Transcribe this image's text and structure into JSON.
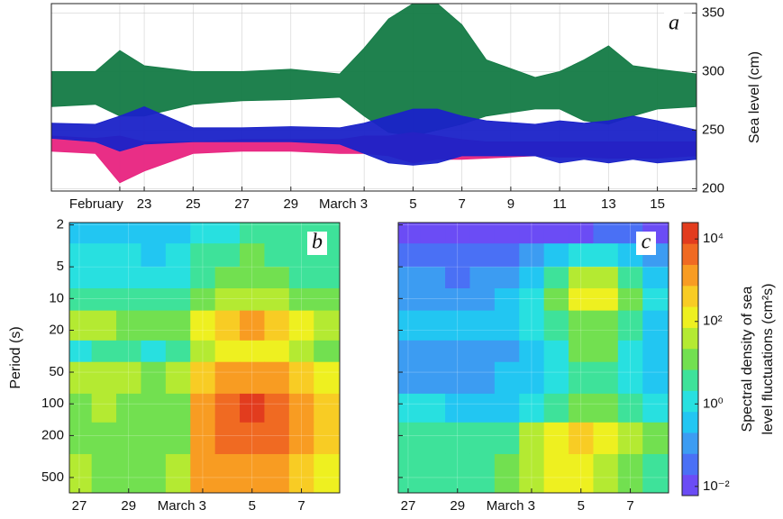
{
  "chart_data": [
    {
      "type": "band",
      "panel_label": "a",
      "y_label": "Sea level (cm)",
      "x": [
        50.2,
        52,
        53,
        54,
        56,
        58,
        60,
        62,
        63,
        64,
        65,
        66,
        67,
        68,
        70,
        71,
        72,
        73,
        74,
        75,
        76.6
      ],
      "series": [
        {
          "color": "#137a45",
          "high": [
            300,
            300,
            318,
            305,
            300,
            300,
            302,
            298,
            320,
            345,
            358,
            358,
            340,
            310,
            295,
            300,
            310,
            322,
            305,
            302,
            298
          ],
          "low": [
            270,
            272,
            262,
            262,
            272,
            275,
            276,
            278,
            262,
            248,
            245,
            250,
            255,
            262,
            268,
            268,
            258,
            255,
            262,
            268,
            270
          ]
        },
        {
          "color": "#e8237f",
          "high": [
            245,
            243,
            245,
            240,
            240,
            242,
            242,
            242,
            245,
            245,
            248,
            245,
            242,
            240,
            240,
            240,
            240,
            240,
            240,
            240,
            240
          ],
          "low": [
            232,
            230,
            205,
            215,
            230,
            232,
            232,
            230,
            230,
            228,
            222,
            225,
            225,
            226,
            228,
            227,
            227,
            226,
            226,
            226,
            228
          ]
        },
        {
          "color": "#1a22c8",
          "high": [
            256,
            255,
            262,
            270,
            252,
            252,
            253,
            252,
            256,
            262,
            268,
            268,
            262,
            258,
            255,
            258,
            256,
            258,
            262,
            258,
            250
          ],
          "low": [
            243,
            240,
            232,
            238,
            240,
            240,
            240,
            238,
            230,
            222,
            220,
            222,
            228,
            228,
            228,
            222,
            225,
            222,
            225,
            222,
            225
          ]
        }
      ],
      "xlim": [
        50.2,
        76.6
      ],
      "ylim": [
        198,
        358
      ],
      "yticks": [
        200,
        250,
        300,
        350
      ],
      "xticks": [
        {
          "value": 53,
          "label": "February"
        },
        {
          "value": 54,
          "label": "23"
        },
        {
          "value": 56,
          "label": "25"
        },
        {
          "value": 58,
          "label": "27"
        },
        {
          "value": 60,
          "label": "29"
        },
        {
          "value": 63,
          "label": "March 3"
        },
        {
          "value": 65,
          "label": "5"
        },
        {
          "value": 67,
          "label": "7"
        },
        {
          "value": 69,
          "label": "9"
        },
        {
          "value": 71,
          "label": "11"
        },
        {
          "value": 73,
          "label": "13"
        },
        {
          "value": 75,
          "label": "15"
        }
      ],
      "grid": true
    },
    {
      "type": "heatmap",
      "panel_label": "b",
      "y_label": "Period (s)",
      "y_log": true,
      "y_inverted": true,
      "ytick_labels": true,
      "x_edges": [
        57.5,
        58.5,
        59.5,
        60.5,
        61.5,
        62.5,
        63.5,
        64.5,
        65.5,
        66.5,
        67.5,
        68.55
      ],
      "y_edges": [
        1.9,
        3,
        5,
        8,
        13,
        25,
        40,
        80,
        150,
        300,
        700
      ],
      "values": [
        [
          0.5,
          0.5,
          0.3,
          0.5,
          0.5,
          1,
          1,
          3,
          3,
          5,
          3
        ],
        [
          1,
          1,
          1,
          0.5,
          1,
          3,
          5,
          10,
          5,
          3,
          3
        ],
        [
          1,
          1,
          1,
          1,
          1,
          5,
          10,
          10,
          10,
          5,
          3
        ],
        [
          3,
          5,
          3,
          3,
          3,
          10,
          30,
          30,
          30,
          10,
          10
        ],
        [
          30,
          30,
          10,
          10,
          10,
          100,
          300,
          1000,
          300,
          100,
          30
        ],
        [
          1,
          3,
          3,
          1,
          3,
          30,
          100,
          100,
          100,
          30,
          10
        ],
        [
          30,
          30,
          30,
          10,
          30,
          300,
          1000,
          1000,
          1000,
          300,
          100
        ],
        [
          10,
          30,
          10,
          10,
          10,
          1000,
          3000,
          10000,
          3000,
          1000,
          300
        ],
        [
          10,
          10,
          10,
          10,
          10,
          1000,
          3000,
          3000,
          3000,
          1000,
          300
        ],
        [
          30,
          10,
          10,
          10,
          30,
          1000,
          1000,
          1000,
          1000,
          300,
          100
        ]
      ],
      "xlim": [
        57.6,
        68.55
      ],
      "ylim": [
        1.9,
        700
      ],
      "yticks": [
        2,
        5,
        10,
        20,
        50,
        100,
        200,
        500
      ],
      "xticks": [
        {
          "value": 58,
          "label": "27"
        },
        {
          "value": 60,
          "label": "29"
        },
        {
          "value": 63,
          "label": "March 3"
        },
        {
          "value": 65,
          "label": "5"
        },
        {
          "value": 67,
          "label": "7"
        }
      ],
      "clim": [
        0.006,
        25000
      ],
      "colormap": [
        "#6b4cf5",
        "#4a70f5",
        "#3c9cf2",
        "#22c6f2",
        "#28e0e0",
        "#3ee29a",
        "#72e050",
        "#b4ea32",
        "#eef020",
        "#f8cc24",
        "#f89c22",
        "#f06a22",
        "#e23c1e"
      ],
      "grid": true
    },
    {
      "type": "heatmap",
      "panel_label": "c",
      "y_log": true,
      "y_inverted": true,
      "ytick_labels": false,
      "x_edges": [
        57.5,
        58.5,
        59.5,
        60.5,
        61.5,
        62.5,
        63.5,
        64.5,
        65.5,
        66.5,
        67.5,
        68.55
      ],
      "y_edges": [
        1.9,
        3,
        5,
        8,
        13,
        25,
        40,
        80,
        150,
        300,
        700
      ],
      "values": [
        [
          0.01,
          0.01,
          0.01,
          0.01,
          0.01,
          0.01,
          0.01,
          0.01,
          0.03,
          0.03,
          0.01
        ],
        [
          0.03,
          0.03,
          0.03,
          0.03,
          0.03,
          0.1,
          0.3,
          1,
          1,
          0.3,
          0.1
        ],
        [
          0.1,
          0.1,
          0.03,
          0.1,
          0.1,
          0.3,
          3,
          30,
          30,
          3,
          0.3
        ],
        [
          0.1,
          0.1,
          0.1,
          0.1,
          0.3,
          1,
          10,
          100,
          100,
          10,
          1
        ],
        [
          0.3,
          0.3,
          0.3,
          0.3,
          0.3,
          1,
          3,
          10,
          10,
          3,
          0.3
        ],
        [
          0.1,
          0.1,
          0.1,
          0.1,
          0.1,
          0.3,
          1,
          10,
          10,
          1,
          0.3
        ],
        [
          0.1,
          0.1,
          0.1,
          0.1,
          0.3,
          0.3,
          1,
          3,
          3,
          1,
          0.3
        ],
        [
          1,
          1,
          0.3,
          0.3,
          0.3,
          1,
          3,
          10,
          10,
          3,
          1
        ],
        [
          3,
          3,
          3,
          3,
          3,
          30,
          100,
          300,
          100,
          30,
          10
        ],
        [
          3,
          3,
          3,
          3,
          10,
          30,
          100,
          100,
          30,
          10,
          3
        ]
      ],
      "xlim": [
        57.6,
        68.55
      ],
      "ylim": [
        1.9,
        700
      ],
      "yticks": [
        2,
        5,
        10,
        20,
        50,
        100,
        200,
        500
      ],
      "xticks": [
        {
          "value": 58,
          "label": "27"
        },
        {
          "value": 60,
          "label": "29"
        },
        {
          "value": 63,
          "label": "March 3"
        },
        {
          "value": 65,
          "label": "5"
        },
        {
          "value": 67,
          "label": "7"
        }
      ],
      "clim": [
        0.006,
        25000
      ],
      "colormap": [
        "#6b4cf5",
        "#4a70f5",
        "#3c9cf2",
        "#22c6f2",
        "#28e0e0",
        "#3ee29a",
        "#72e050",
        "#b4ea32",
        "#eef020",
        "#f8cc24",
        "#f89c22",
        "#f06a22",
        "#e23c1e"
      ],
      "colorbar": {
        "label": [
          "Spectral density of sea",
          "level fluctuations (cm²s)"
        ],
        "ticks": [
          {
            "value": 0.01,
            "label": "10⁻²"
          },
          {
            "value": 1,
            "label": "10⁰"
          },
          {
            "value": 100,
            "label": "10²"
          },
          {
            "value": 10000,
            "label": "10⁴"
          }
        ]
      },
      "grid": true
    }
  ]
}
